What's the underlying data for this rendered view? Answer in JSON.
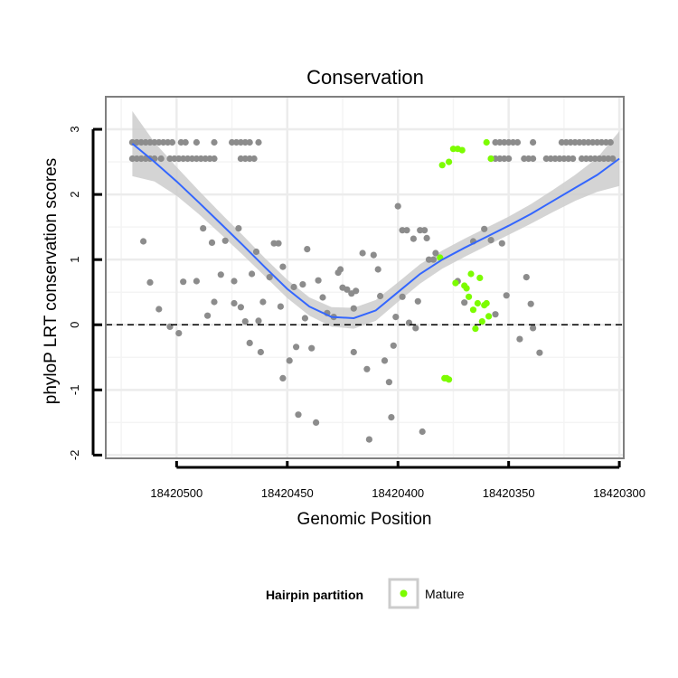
{
  "chart_data": {
    "type": "scatter",
    "title": "Conservation",
    "xlabel": "Genomic Position",
    "ylabel": "phyloP LRT conservation scores",
    "x_reversed": true,
    "xlim": [
      18420532,
      18420298
    ],
    "ylim": [
      -2.05,
      3.5
    ],
    "x_ticks": [
      18420500,
      18420450,
      18420400,
      18420350,
      18420300
    ],
    "x_tick_labels": [
      "18420500",
      "18420450",
      "18420400",
      "18420350",
      "18420300"
    ],
    "y_ticks": [
      -2,
      -1,
      0,
      1,
      2,
      3
    ],
    "y_tick_labels": [
      "-2",
      "-1",
      "0",
      "1",
      "2",
      "3"
    ],
    "grid": true,
    "reference_line": {
      "y": 0,
      "style": "dashed"
    },
    "legend": {
      "title": "Hairpin partition",
      "entries": [
        "Mature"
      ],
      "position": "bottom"
    },
    "colors": {
      "other": "#8c8c8c",
      "mature": "#7cfc00",
      "smooth": "#3366ff",
      "band": "#cccccc"
    },
    "series": [
      {
        "name": "",
        "role": "other",
        "points": [
          [
            18420520,
            2.8
          ],
          [
            18420518,
            2.8
          ],
          [
            18420516,
            2.8
          ],
          [
            18420514,
            2.8
          ],
          [
            18420512,
            2.8
          ],
          [
            18420510,
            2.8
          ],
          [
            18420508,
            2.8
          ],
          [
            18420506,
            2.8
          ],
          [
            18420504,
            2.8
          ],
          [
            18420502,
            2.8
          ],
          [
            18420498,
            2.8
          ],
          [
            18420496,
            2.8
          ],
          [
            18420491,
            2.8
          ],
          [
            18420483,
            2.8
          ],
          [
            18420475,
            2.8
          ],
          [
            18420473,
            2.8
          ],
          [
            18420471,
            2.8
          ],
          [
            18420469,
            2.8
          ],
          [
            18420467,
            2.8
          ],
          [
            18420463,
            2.8
          ],
          [
            18420520,
            2.55
          ],
          [
            18420518,
            2.55
          ],
          [
            18420516,
            2.55
          ],
          [
            18420514,
            2.55
          ],
          [
            18420512,
            2.55
          ],
          [
            18420510,
            2.55
          ],
          [
            18420507,
            2.55
          ],
          [
            18420503,
            2.55
          ],
          [
            18420501,
            2.55
          ],
          [
            18420499,
            2.55
          ],
          [
            18420497,
            2.55
          ],
          [
            18420495,
            2.55
          ],
          [
            18420493,
            2.55
          ],
          [
            18420491,
            2.55
          ],
          [
            18420489,
            2.55
          ],
          [
            18420487,
            2.55
          ],
          [
            18420485,
            2.55
          ],
          [
            18420483,
            2.55
          ],
          [
            18420471,
            2.55
          ],
          [
            18420469,
            2.55
          ],
          [
            18420467,
            2.55
          ],
          [
            18420465,
            2.55
          ],
          [
            18420356,
            2.8
          ],
          [
            18420354,
            2.8
          ],
          [
            18420352,
            2.8
          ],
          [
            18420350,
            2.8
          ],
          [
            18420348,
            2.8
          ],
          [
            18420346,
            2.8
          ],
          [
            18420339,
            2.8
          ],
          [
            18420326,
            2.8
          ],
          [
            18420324,
            2.8
          ],
          [
            18420322,
            2.8
          ],
          [
            18420320,
            2.8
          ],
          [
            18420318,
            2.8
          ],
          [
            18420316,
            2.8
          ],
          [
            18420314,
            2.8
          ],
          [
            18420312,
            2.8
          ],
          [
            18420310,
            2.8
          ],
          [
            18420308,
            2.8
          ],
          [
            18420306,
            2.8
          ],
          [
            18420304,
            2.8
          ],
          [
            18420358,
            2.55
          ],
          [
            18420356,
            2.55
          ],
          [
            18420354,
            2.55
          ],
          [
            18420352,
            2.55
          ],
          [
            18420350,
            2.55
          ],
          [
            18420343,
            2.55
          ],
          [
            18420341,
            2.55
          ],
          [
            18420339,
            2.55
          ],
          [
            18420333,
            2.55
          ],
          [
            18420331,
            2.55
          ],
          [
            18420329,
            2.55
          ],
          [
            18420327,
            2.55
          ],
          [
            18420325,
            2.55
          ],
          [
            18420323,
            2.55
          ],
          [
            18420321,
            2.55
          ],
          [
            18420317,
            2.55
          ],
          [
            18420315,
            2.55
          ],
          [
            18420313,
            2.55
          ],
          [
            18420311,
            2.55
          ],
          [
            18420309,
            2.55
          ],
          [
            18420307,
            2.55
          ],
          [
            18420305,
            2.55
          ],
          [
            18420303,
            2.55
          ],
          [
            18420515,
            1.28
          ],
          [
            18420512,
            0.65
          ],
          [
            18420508,
            0.24
          ],
          [
            18420503,
            -0.03
          ],
          [
            18420499,
            -0.13
          ],
          [
            18420497,
            0.66
          ],
          [
            18420491,
            0.67
          ],
          [
            18420488,
            1.48
          ],
          [
            18420486,
            0.14
          ],
          [
            18420484,
            1.26
          ],
          [
            18420483,
            0.35
          ],
          [
            18420480,
            0.77
          ],
          [
            18420478,
            1.29
          ],
          [
            18420474,
            0.67
          ],
          [
            18420474,
            0.33
          ],
          [
            18420472,
            1.48
          ],
          [
            18420471,
            0.27
          ],
          [
            18420469,
            0.05
          ],
          [
            18420467,
            -0.28
          ],
          [
            18420466,
            0.78
          ],
          [
            18420464,
            1.12
          ],
          [
            18420463,
            0.06
          ],
          [
            18420462,
            -0.42
          ],
          [
            18420461,
            0.35
          ],
          [
            18420458,
            0.73
          ],
          [
            18420456,
            1.25
          ],
          [
            18420454,
            1.25
          ],
          [
            18420453,
            0.28
          ],
          [
            18420452,
            0.89
          ],
          [
            18420452,
            -0.82
          ],
          [
            18420449,
            -0.55
          ],
          [
            18420447,
            0.58
          ],
          [
            18420446,
            -0.34
          ],
          [
            18420445,
            -1.38
          ],
          [
            18420443,
            0.62
          ],
          [
            18420442,
            0.1
          ],
          [
            18420441,
            1.16
          ],
          [
            18420439,
            -0.36
          ],
          [
            18420437,
            -1.5
          ],
          [
            18420436,
            0.68
          ],
          [
            18420434,
            0.42
          ],
          [
            18420432,
            0.18
          ],
          [
            18420429,
            0.12
          ],
          [
            18420427,
            0.8
          ],
          [
            18420426,
            0.85
          ],
          [
            18420425,
            0.57
          ],
          [
            18420423,
            0.54
          ],
          [
            18420421,
            0.48
          ],
          [
            18420420,
            -0.42
          ],
          [
            18420420,
            0.25
          ],
          [
            18420419,
            0.52
          ],
          [
            18420416,
            1.1
          ],
          [
            18420414,
            -0.68
          ],
          [
            18420413,
            -1.76
          ],
          [
            18420411,
            1.07
          ],
          [
            18420409,
            0.85
          ],
          [
            18420408,
            0.44
          ],
          [
            18420406,
            -0.55
          ],
          [
            18420404,
            -0.88
          ],
          [
            18420403,
            -1.42
          ],
          [
            18420402,
            -0.32
          ],
          [
            18420401,
            0.12
          ],
          [
            18420400,
            1.82
          ],
          [
            18420398,
            0.43
          ],
          [
            18420398,
            1.45
          ],
          [
            18420396,
            1.45
          ],
          [
            18420395,
            0.03
          ],
          [
            18420393,
            1.32
          ],
          [
            18420392,
            -0.05
          ],
          [
            18420391,
            0.36
          ],
          [
            18420390,
            1.45
          ],
          [
            18420389,
            -1.64
          ],
          [
            18420388,
            1.45
          ],
          [
            18420387,
            1.33
          ],
          [
            18420386,
            1.0
          ],
          [
            18420384,
            1.0
          ],
          [
            18420383,
            1.1
          ],
          [
            18420373,
            0.67
          ],
          [
            18420370,
            0.34
          ],
          [
            18420366,
            1.28
          ],
          [
            18420361,
            1.47
          ],
          [
            18420358,
            1.3
          ],
          [
            18420356,
            0.16
          ],
          [
            18420353,
            1.25
          ],
          [
            18420351,
            0.45
          ],
          [
            18420345,
            -0.22
          ],
          [
            18420342,
            0.73
          ],
          [
            18420340,
            0.32
          ],
          [
            18420339,
            -0.05
          ],
          [
            18420336,
            -0.43
          ]
        ]
      },
      {
        "name": "Mature",
        "role": "mature",
        "points": [
          [
            18420380,
            2.45
          ],
          [
            18420377,
            2.5
          ],
          [
            18420375,
            2.7
          ],
          [
            18420373,
            2.7
          ],
          [
            18420371,
            2.68
          ],
          [
            18420360,
            2.8
          ],
          [
            18420358,
            2.55
          ],
          [
            18420381,
            1.03
          ],
          [
            18420374,
            0.64
          ],
          [
            18420370,
            0.6
          ],
          [
            18420369,
            0.56
          ],
          [
            18420368,
            0.43
          ],
          [
            18420367,
            0.78
          ],
          [
            18420366,
            0.23
          ],
          [
            18420365,
            -0.06
          ],
          [
            18420364,
            0.33
          ],
          [
            18420363,
            0.72
          ],
          [
            18420362,
            0.05
          ],
          [
            18420361,
            0.3
          ],
          [
            18420360,
            0.33
          ],
          [
            18420359,
            0.13
          ],
          [
            18420379,
            -0.82
          ],
          [
            18420378,
            -0.82
          ],
          [
            18420377,
            -0.84
          ]
        ]
      }
    ],
    "smooth": {
      "x": [
        18420520,
        18420510,
        18420500,
        18420490,
        18420480,
        18420470,
        18420460,
        18420450,
        18420440,
        18420430,
        18420420,
        18420410,
        18420400,
        18420390,
        18420380,
        18420370,
        18420360,
        18420350,
        18420340,
        18420330,
        18420320,
        18420310,
        18420300
      ],
      "y": [
        2.78,
        2.5,
        2.2,
        1.88,
        1.55,
        1.22,
        0.88,
        0.55,
        0.28,
        0.12,
        0.1,
        0.22,
        0.5,
        0.78,
        1.0,
        1.18,
        1.35,
        1.52,
        1.7,
        1.9,
        2.1,
        2.3,
        2.55
      ],
      "band_halfwidth": [
        0.5,
        0.3,
        0.22,
        0.18,
        0.16,
        0.15,
        0.14,
        0.14,
        0.14,
        0.15,
        0.16,
        0.16,
        0.15,
        0.15,
        0.14,
        0.14,
        0.14,
        0.14,
        0.15,
        0.17,
        0.2,
        0.26,
        0.42
      ]
    }
  }
}
